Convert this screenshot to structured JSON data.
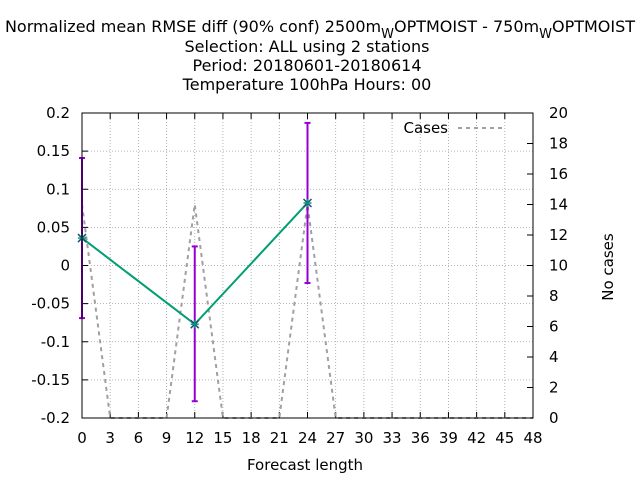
{
  "chart_data": {
    "type": "line",
    "title_lines": [
      "Normalized mean RMSE diff (90% conf) 2500m",
      "Selection: ALL using     2 stations",
      "Period: 20180601-20180614",
      "Temperature 100hPa   Hours:  00"
    ],
    "title_parts": {
      "part1": "Normalized mean RMSE diff (90% conf) 2500m",
      "sub1": "W",
      "part2": "OPTMOIST - 750m",
      "sub2": "W",
      "part3": "OPTMOIST"
    },
    "xlabel": "Forecast length",
    "ylabel": "",
    "y2label": "No cases",
    "xlim": [
      0,
      48
    ],
    "ylim": [
      -0.2,
      0.2
    ],
    "y2lim": [
      0,
      20
    ],
    "xticks": [
      "0",
      "3",
      "6",
      "9",
      "12",
      "15",
      "18",
      "21",
      "24",
      "27",
      "30",
      "33",
      "36",
      "39",
      "42",
      "45",
      "48"
    ],
    "yticks": [
      "0.2",
      "0.15",
      "0.1",
      "0.05",
      "0",
      "-0.05",
      "-0.1",
      "-0.15",
      "-0.2"
    ],
    "y2ticks": [
      "20",
      "18",
      "16",
      "14",
      "12",
      "10",
      "8",
      "6",
      "4",
      "2",
      "0"
    ],
    "grid": true,
    "legend": {
      "position": "top-right",
      "entries": [
        "Cases"
      ]
    },
    "series": [
      {
        "x": [
          0,
          12,
          24
        ],
        "y": [
          0.036,
          -0.077,
          0.082
        ],
        "err_low": [
          -0.069,
          -0.178,
          -0.023
        ],
        "err_high": [
          0.141,
          0.025,
          0.187
        ],
        "color": "#009e73",
        "errcolor": "#9400d3"
      },
      {
        "name": "Cases",
        "axis": "y2",
        "x": [
          0,
          3,
          9,
          12,
          15,
          21,
          24,
          27,
          48
        ],
        "y": [
          14,
          0,
          0,
          14,
          0,
          0,
          14,
          0,
          0
        ],
        "color": "#a0a0a0",
        "dashed": true
      }
    ]
  }
}
